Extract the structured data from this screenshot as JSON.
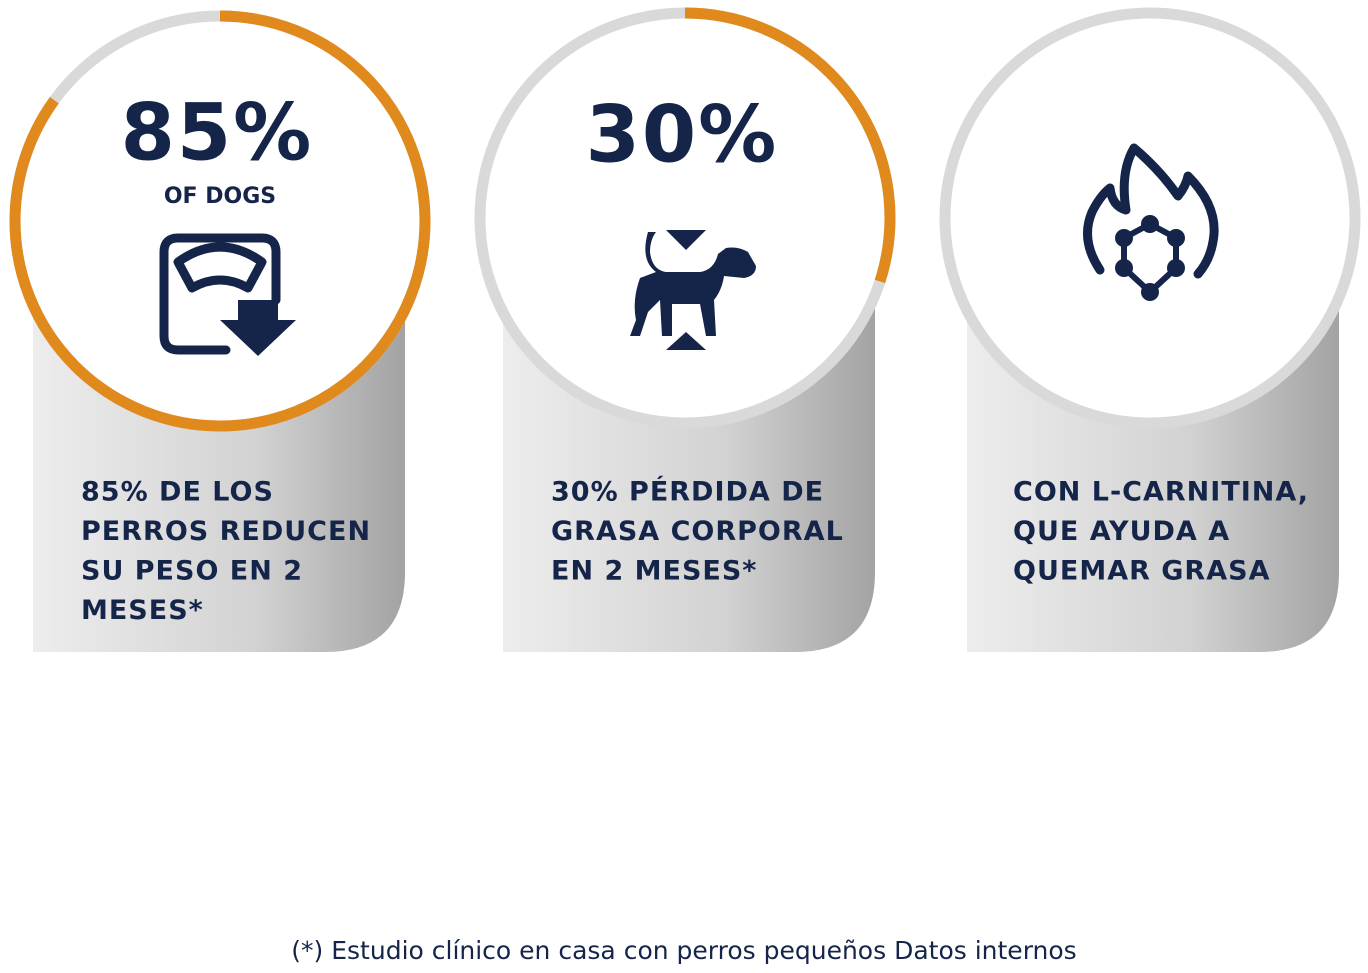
{
  "cards": [
    {
      "value": 85,
      "value_label": "85%",
      "caption": "OF DOGS",
      "description": [
        "85% DE LOS",
        "PERROS REDUCEN",
        "SU PESO EN 2",
        "MESES*"
      ]
    },
    {
      "value": 30,
      "value_label": "30%",
      "description": [
        "30% PÉRDIDA DE",
        "GRASA CORPORAL",
        "EN 2 MESES*"
      ]
    },
    {
      "description": [
        "CON L-CARNITINA,",
        "QUE AYUDA A",
        "QUEMAR GRASA"
      ]
    }
  ],
  "footnote": "(*) Estudio clínico en casa con perros pequeños Datos internos"
}
